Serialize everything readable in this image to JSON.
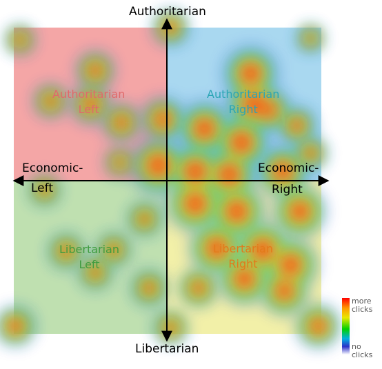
{
  "chart_data": {
    "type": "heatmap",
    "axes": {
      "top": "Authoritarian",
      "bottom": "Libertarian",
      "left": [
        "Economic-",
        "Left"
      ],
      "right": [
        "Economic-",
        "Right"
      ]
    },
    "quadrants": [
      {
        "lines": [
          "Authoritarian",
          "Left"
        ],
        "fill": "#f4a6a6",
        "text_color": "#e06a6a"
      },
      {
        "lines": [
          "Authoritarian",
          "Right"
        ],
        "fill": "#a9d8f0",
        "text_color": "#2aa5b5"
      },
      {
        "lines": [
          "Libertarian",
          "Left"
        ],
        "fill": "#bfe0b0",
        "text_color": "#3f9c3f"
      },
      {
        "lines": [
          "Libertarian",
          "Right"
        ],
        "fill": "#f2f0a8",
        "text_color": "#e27a1a"
      }
    ],
    "grid": false,
    "x_range": [
      -10,
      10
    ],
    "y_range": [
      -10,
      10
    ],
    "hotspots": [
      {
        "x": 0.2,
        "y": 10.0,
        "w": 0.5
      },
      {
        "x": -9.6,
        "y": 9.2,
        "w": 0.35
      },
      {
        "x": -9.9,
        "y": -9.5,
        "w": 0.6
      },
      {
        "x": 9.8,
        "y": -9.5,
        "w": 0.7
      },
      {
        "x": 9.3,
        "y": 9.3,
        "w": 0.3
      },
      {
        "x": -4.7,
        "y": 7.2,
        "w": 0.55
      },
      {
        "x": -5.0,
        "y": 5.0,
        "w": 0.6
      },
      {
        "x": -7.6,
        "y": 5.2,
        "w": 0.45
      },
      {
        "x": -3.0,
        "y": 3.8,
        "w": 0.55
      },
      {
        "x": -0.3,
        "y": 4.0,
        "w": 0.7
      },
      {
        "x": -3.1,
        "y": 1.2,
        "w": 0.35
      },
      {
        "x": -0.6,
        "y": 1.0,
        "w": 1.0
      },
      {
        "x": 5.4,
        "y": 7.0,
        "w": 0.95
      },
      {
        "x": 5.6,
        "y": 5.0,
        "w": 1.0
      },
      {
        "x": 2.4,
        "y": 3.4,
        "w": 0.95
      },
      {
        "x": 4.8,
        "y": 2.5,
        "w": 1.0
      },
      {
        "x": 6.6,
        "y": 4.6,
        "w": 0.7
      },
      {
        "x": 8.4,
        "y": 3.6,
        "w": 0.55
      },
      {
        "x": 9.3,
        "y": 1.8,
        "w": 0.45
      },
      {
        "x": 1.8,
        "y": 0.6,
        "w": 1.0
      },
      {
        "x": 4.0,
        "y": 0.4,
        "w": 1.0
      },
      {
        "x": 7.5,
        "y": 0.6,
        "w": 0.9
      },
      {
        "x": 1.8,
        "y": -1.5,
        "w": 1.0
      },
      {
        "x": 4.5,
        "y": -2.0,
        "w": 1.0
      },
      {
        "x": 8.6,
        "y": -2.0,
        "w": 0.9
      },
      {
        "x": 3.2,
        "y": -4.4,
        "w": 0.95
      },
      {
        "x": 6.2,
        "y": -4.5,
        "w": 1.0
      },
      {
        "x": 8.0,
        "y": -5.5,
        "w": 0.95
      },
      {
        "x": 5.0,
        "y": -6.4,
        "w": 0.9
      },
      {
        "x": 7.6,
        "y": -7.2,
        "w": 0.8
      },
      {
        "x": -1.5,
        "y": -2.5,
        "w": 0.45
      },
      {
        "x": -3.5,
        "y": -4.5,
        "w": 0.45
      },
      {
        "x": -6.6,
        "y": -4.6,
        "w": 0.5
      },
      {
        "x": -4.7,
        "y": -6.0,
        "w": 0.45
      },
      {
        "x": -1.2,
        "y": -7.0,
        "w": 0.5
      },
      {
        "x": 2.0,
        "y": -7.0,
        "w": 0.55
      },
      {
        "x": 0.2,
        "y": -9.6,
        "w": 0.45
      },
      {
        "x": -8.0,
        "y": -0.6,
        "w": 0.4
      }
    ],
    "legend": {
      "high": [
        "more",
        "clicks"
      ],
      "low": [
        "no",
        "clicks"
      ],
      "colors": [
        "#ff0000",
        "#ff9900",
        "#e8e800",
        "#00d000",
        "#00b0e0",
        "#2a30c8",
        "#ffffff"
      ]
    }
  }
}
